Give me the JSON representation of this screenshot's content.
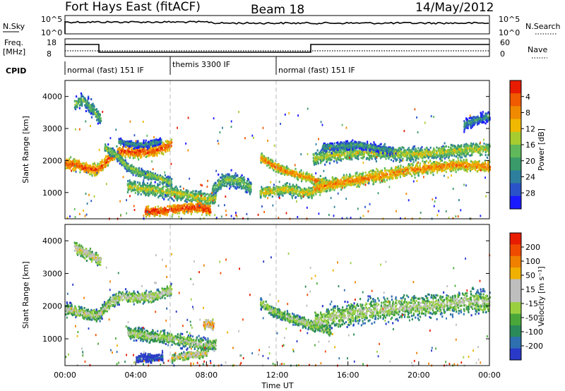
{
  "header": {
    "station": "Fort Hays East (fitACF)",
    "beam": "Beam 18",
    "date": "14/May/2012"
  },
  "top_panel": {
    "nsky_label": "N.Sky",
    "nsky_ticks": [
      "10^5",
      "10^0"
    ],
    "nsearch_label": "N.Search",
    "nsearch_ticks": [
      "10^5",
      "10^0"
    ],
    "freq_label": "Freq.",
    "freq_unit": "[MHz]",
    "freq_ticks": [
      "18",
      "8"
    ],
    "nave_label": "Nave",
    "nave_ticks": [
      "60",
      "0"
    ],
    "cpid_label": "CPID"
  },
  "cpid_segments": [
    {
      "label": "normal (fast) 151 IF",
      "start": 0,
      "end": 6
    },
    {
      "label": "themis 3300 IF",
      "start": 6,
      "end": 12
    },
    {
      "label": "normal (fast) 151 IF",
      "start": 12,
      "end": 24
    }
  ],
  "chart_data": [
    {
      "type": "heatmap",
      "panel": "power",
      "ylabel": "Slant Range [km]",
      "yticks": [
        1000,
        2000,
        3000,
        4000
      ],
      "ylim": [
        180,
        4500
      ],
      "xlim": [
        0,
        24
      ],
      "colorbar": {
        "label": "Power [dB]",
        "ticks": [
          "4",
          "8",
          "12",
          "16",
          "20",
          "24",
          "28"
        ],
        "colors": [
          "#1a1aff",
          "#2a52c8",
          "#2e7f9e",
          "#3a9a6a",
          "#5fb85a",
          "#a6cc30",
          "#f0b800",
          "#f08a00",
          "#f05a00",
          "#e81c00"
        ]
      },
      "bands": [
        {
          "t": [
            0,
            0.6,
            1.2,
            1.8,
            2.5,
            3.2,
            4.0,
            5.0,
            6.0
          ],
          "r": [
            1900,
            1850,
            1750,
            1700,
            2100,
            2300,
            2250,
            2300,
            2500
          ],
          "w": 250,
          "level": 0.9
        },
        {
          "t": [
            0.5,
            1.0,
            1.5,
            2.0
          ],
          "r": [
            3750,
            3900,
            3600,
            3300
          ],
          "w": 350,
          "level": 0.45
        },
        {
          "t": [
            2.2,
            2.8,
            3.5,
            4.2,
            5.0,
            6.0
          ],
          "r": [
            2400,
            2200,
            1800,
            1600,
            1500,
            1300
          ],
          "w": 200,
          "level": 0.55
        },
        {
          "t": [
            3.5,
            4.5,
            5.5,
            6.5,
            7.5,
            8.0,
            8.5
          ],
          "r": [
            1200,
            1100,
            1050,
            950,
            850,
            800,
            850
          ],
          "w": 280,
          "level": 0.6
        },
        {
          "t": [
            4.5,
            5.5,
            6.5,
            7.5,
            8.2
          ],
          "r": [
            400,
            420,
            500,
            550,
            450
          ],
          "w": 220,
          "level": 0.95
        },
        {
          "t": [
            8.3,
            9.0,
            9.8,
            10.5
          ],
          "r": [
            1100,
            1400,
            1350,
            1150
          ],
          "w": 330,
          "level": 0.5
        },
        {
          "t": [
            11.0,
            11.7,
            12.3,
            12.8,
            13.5,
            14.2,
            15.0
          ],
          "r": [
            2100,
            1850,
            1700,
            1600,
            1500,
            1350,
            1250
          ],
          "w": 200,
          "level": 0.8
        },
        {
          "t": [
            11.0,
            11.8,
            12.5,
            13.5,
            14.0
          ],
          "r": [
            1000,
            1050,
            1100,
            1000,
            1000
          ],
          "w": 250,
          "level": 0.65
        },
        {
          "t": [
            14.0,
            15.0,
            16.0,
            17.0,
            18.0,
            19.0,
            20.0,
            21.0,
            22.0,
            23.0,
            24.0
          ],
          "r": [
            1100,
            1250,
            1350,
            1450,
            1550,
            1650,
            1750,
            1800,
            1850,
            1850,
            1800
          ],
          "w": 280,
          "level": 0.8
        },
        {
          "t": [
            14.0,
            15.0,
            16.0,
            17.0,
            18.0,
            19.0,
            20.0,
            21.0,
            22.0,
            23.0,
            24.0
          ],
          "r": [
            2050,
            2150,
            2200,
            2250,
            2250,
            2200,
            2200,
            2250,
            2300,
            2350,
            2350
          ],
          "w": 300,
          "level": 0.6
        },
        {
          "t": [
            14.5,
            15.5,
            16.5,
            17.5,
            18.5
          ],
          "r": [
            2400,
            2450,
            2500,
            2400,
            2300
          ],
          "w": 180,
          "level": 0.4
        },
        {
          "t": [
            22.5,
            23.2,
            24.0
          ],
          "r": [
            3100,
            3250,
            3400
          ],
          "w": 250,
          "level": 0.35
        },
        {
          "t": [
            3.0,
            3.8,
            4.6,
            5.4
          ],
          "r": [
            2600,
            2500,
            2500,
            2600
          ],
          "w": 150,
          "level": 0.35
        }
      ]
    },
    {
      "type": "heatmap",
      "panel": "velocity",
      "ylabel": "Slant Range [km]",
      "yticks": [
        1000,
        2000,
        3000,
        4000
      ],
      "ylim": [
        180,
        4500
      ],
      "xlim": [
        0,
        24
      ],
      "xticks": [
        "00:00",
        "04:00",
        "08:00",
        "12:00",
        "16:00",
        "20:00",
        "00:00"
      ],
      "xlabel": "Time UT",
      "colorbar": {
        "label": "Velocity [m s⁻¹]",
        "ticks": [
          "200",
          "100",
          "50",
          "15",
          "-15",
          "-50",
          "-100",
          "-200"
        ],
        "colors": [
          "#2a3ac8",
          "#2e6fb0",
          "#2a8a5a",
          "#4aa83a",
          "#9ad040",
          "#bebebe",
          "#bebebe",
          "#f0b000",
          "#f08000",
          "#f04a00",
          "#e81c00"
        ]
      },
      "bands": [
        {
          "t": [
            0,
            0.6,
            1.2,
            1.8,
            2.5,
            3.2,
            4.0,
            5.0,
            6.0
          ],
          "r": [
            1900,
            1850,
            1750,
            1700,
            2100,
            2300,
            2250,
            2300,
            2500
          ],
          "w": 250,
          "level": 0.55
        },
        {
          "t": [
            3.5,
            4.5,
            5.5,
            6.5,
            7.5,
            8.0,
            8.5
          ],
          "r": [
            1200,
            1100,
            1050,
            950,
            850,
            800,
            850
          ],
          "w": 280,
          "level": 0.5
        },
        {
          "t": [
            4.0,
            4.8,
            5.5
          ],
          "r": [
            380,
            400,
            450
          ],
          "w": 180,
          "level": 0.12
        },
        {
          "t": [
            6.0,
            7.0,
            8.0
          ],
          "r": [
            400,
            500,
            550
          ],
          "w": 160,
          "level": 0.65
        },
        {
          "t": [
            7.8,
            8.1,
            8.4
          ],
          "r": [
            1400,
            1450,
            1400
          ],
          "w": 220,
          "level": 0.75
        },
        {
          "t": [
            11.0,
            11.7,
            12.3,
            12.8,
            13.5,
            14.2,
            15.0
          ],
          "r": [
            2100,
            1850,
            1700,
            1600,
            1500,
            1350,
            1250
          ],
          "w": 220,
          "level": 0.5
        },
        {
          "t": [
            14.0,
            15.0,
            16.0,
            17.0,
            18.0,
            19.0,
            20.0,
            21.0,
            22.0,
            23.0,
            24.0
          ],
          "r": [
            1500,
            1650,
            1750,
            1850,
            1900,
            1950,
            2000,
            2050,
            2100,
            2150,
            2100
          ],
          "w": 500,
          "level": 0.5
        },
        {
          "t": [
            0.5,
            1.2,
            2.0
          ],
          "r": [
            3800,
            3600,
            3400
          ],
          "w": 250,
          "level": 0.62
        }
      ]
    }
  ]
}
